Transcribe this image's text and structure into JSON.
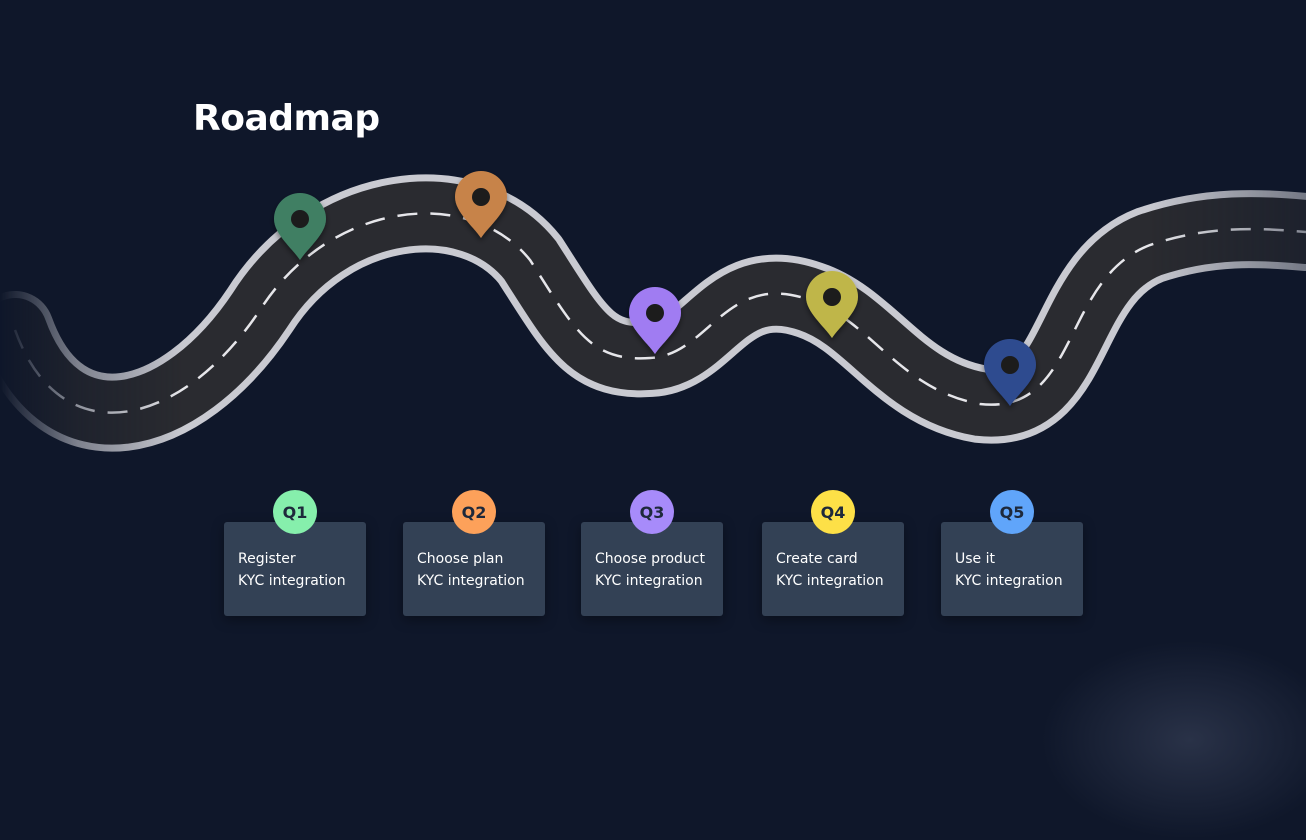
{
  "page": {
    "title": "Roadmap"
  },
  "colors": {
    "background": "#0f172a",
    "card": "#334155",
    "road": "#2a2b30",
    "road_edge": "#d8d8dc"
  },
  "markers": [
    {
      "icon": "map-pin-icon",
      "color": "#3f7f64"
    },
    {
      "icon": "map-pin-icon",
      "color": "#c7834a"
    },
    {
      "icon": "map-pin-icon",
      "color": "#a07cf2"
    },
    {
      "icon": "map-pin-icon",
      "color": "#bfb64a"
    },
    {
      "icon": "map-pin-icon",
      "color": "#2f4b8f"
    }
  ],
  "quarters": [
    {
      "badge": "Q1",
      "color": "#86efac",
      "line1": "Register",
      "line2": "KYC integration"
    },
    {
      "badge": "Q2",
      "color": "#fda15a",
      "line1": "Choose plan",
      "line2": "KYC integration"
    },
    {
      "badge": "Q3",
      "color": "#a78bfa",
      "line1": "Choose product",
      "line2": "KYC integration"
    },
    {
      "badge": "Q4",
      "color": "#fde047",
      "line1": "Create card",
      "line2": "KYC integration"
    },
    {
      "badge": "Q5",
      "color": "#60a5fa",
      "line1": "Use it",
      "line2": "KYC integration"
    }
  ]
}
